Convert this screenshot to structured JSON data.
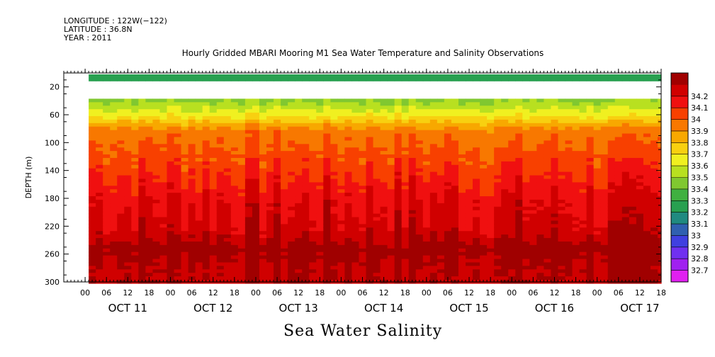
{
  "header": {
    "longitude": "LONGITUDE : 122W(−122)",
    "latitude": "LATITUDE : 36.8N",
    "year": "YEAR : 2011"
  },
  "figure_caption": "Sea Water Salinity",
  "chart_data": {
    "type": "heatmap",
    "title": "Hourly Gridded MBARI Mooring M1 Sea Water Temperature and Salinity Observations",
    "xlabel": "",
    "ylabel": "DEPTH (m)",
    "ylim": [
      300,
      0
    ],
    "y_ticks": [
      20,
      60,
      100,
      140,
      180,
      220,
      260,
      300
    ],
    "x_hour_labels": [
      "00",
      "06",
      "12",
      "18",
      "00",
      "06",
      "12",
      "18",
      "00",
      "06",
      "12",
      "18",
      "00",
      "06",
      "12",
      "18",
      "00",
      "06",
      "12",
      "18",
      "00",
      "06",
      "12",
      "18",
      "00",
      "06",
      "12",
      "18"
    ],
    "x_day_labels": [
      "OCT 11",
      "OCT 12",
      "OCT 13",
      "OCT 14",
      "OCT 15",
      "OCT 16",
      "OCT 17"
    ],
    "x_start_hour": "OCT 10 18:00",
    "x_end_hour": "OCT 17 18:00",
    "data_start_hour": "OCT 11 01:00",
    "colorbar": {
      "levels": [
        32.7,
        32.8,
        32.9,
        33,
        33.1,
        33.2,
        33.3,
        33.4,
        33.5,
        33.6,
        33.7,
        33.8,
        33.9,
        34,
        34.1,
        34.2
      ],
      "colors": [
        "#e020f0",
        "#a020f0",
        "#7030f0",
        "#4040e0",
        "#3060b0",
        "#208a80",
        "#28a050",
        "#40b040",
        "#80c830",
        "#b8e020",
        "#f0f020",
        "#f8d010",
        "#f8a800",
        "#f87800",
        "#f84000",
        "#f01010",
        "#d00000",
        "#a00000"
      ]
    },
    "depth_profile": [
      {
        "depth": 10,
        "salinity": 33.2
      },
      {
        "depth": 45,
        "salinity": 33.45
      },
      {
        "depth": 60,
        "salinity": 33.6
      },
      {
        "depth": 80,
        "salinity": 33.85
      },
      {
        "depth": 100,
        "salinity": 33.9
      },
      {
        "depth": 120,
        "salinity": 33.95
      },
      {
        "depth": 140,
        "salinity": 34.0
      },
      {
        "depth": 180,
        "salinity": 34.1
      },
      {
        "depth": 220,
        "salinity": 34.15
      },
      {
        "depth": 250,
        "salinity": 34.25
      },
      {
        "depth": 280,
        "salinity": 34.2
      },
      {
        "depth": 300,
        "salinity": 34.2
      }
    ],
    "grid": false,
    "legend_placement": "right colorbar"
  }
}
